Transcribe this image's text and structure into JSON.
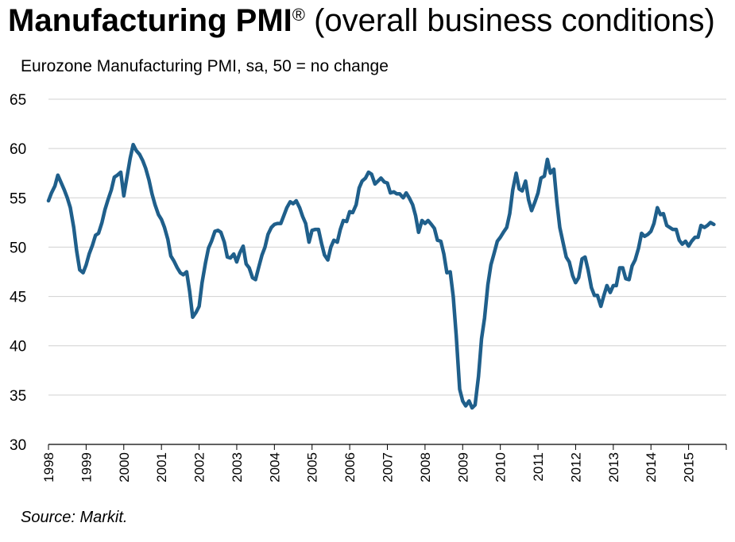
{
  "title": {
    "main": "Manufacturing PMI",
    "mark": "®",
    "rest": " (overall business conditions)"
  },
  "subtitle": "Eurozone Manufacturing PMI, sa, 50 = no change",
  "source": "Source: Markit.",
  "colors": {
    "line": "#1f5f8b",
    "grid": "#d0d0d0",
    "axis": "#000000"
  },
  "chart_data": {
    "type": "line",
    "title": "Manufacturing PMI® (overall business conditions)",
    "ylabel": "Eurozone Manufacturing PMI, sa, 50 = no change",
    "xlabel": "",
    "ylim": [
      30,
      65
    ],
    "yticks": [
      30,
      35,
      40,
      45,
      50,
      55,
      60,
      65
    ],
    "xlim": [
      1998.0,
      2016.0
    ],
    "xticks": [
      "1998",
      "1999",
      "2000",
      "2001",
      "2002",
      "2003",
      "2004",
      "2005",
      "2006",
      "2007",
      "2008",
      "2009",
      "2010",
      "2011",
      "2012",
      "2013",
      "2014",
      "2015"
    ],
    "grid": "horizontal",
    "series": [
      {
        "name": "",
        "points": [
          [
            1998.0,
            54.7
          ],
          [
            1998.08,
            55.5
          ],
          [
            1998.17,
            56.2
          ],
          [
            1998.25,
            57.3
          ],
          [
            1998.33,
            56.6
          ],
          [
            1998.42,
            55.8
          ],
          [
            1998.5,
            55.0
          ],
          [
            1998.58,
            54.0
          ],
          [
            1998.67,
            52.0
          ],
          [
            1998.75,
            49.6
          ],
          [
            1998.83,
            47.7
          ],
          [
            1998.92,
            47.4
          ],
          [
            1999.0,
            48.2
          ],
          [
            1999.08,
            49.3
          ],
          [
            1999.17,
            50.2
          ],
          [
            1999.25,
            51.2
          ],
          [
            1999.33,
            51.4
          ],
          [
            1999.42,
            52.5
          ],
          [
            1999.5,
            53.8
          ],
          [
            1999.58,
            54.8
          ],
          [
            1999.67,
            55.8
          ],
          [
            1999.75,
            57.1
          ],
          [
            1999.83,
            57.3
          ],
          [
            1999.92,
            57.6
          ],
          [
            2000.0,
            55.2
          ],
          [
            2000.08,
            57.0
          ],
          [
            2000.17,
            59.0
          ],
          [
            2000.25,
            60.4
          ],
          [
            2000.33,
            59.8
          ],
          [
            2000.42,
            59.4
          ],
          [
            2000.5,
            58.8
          ],
          [
            2000.58,
            58.0
          ],
          [
            2000.67,
            56.8
          ],
          [
            2000.75,
            55.4
          ],
          [
            2000.83,
            54.3
          ],
          [
            2000.92,
            53.3
          ],
          [
            2001.0,
            52.8
          ],
          [
            2001.08,
            52.0
          ],
          [
            2001.17,
            50.8
          ],
          [
            2001.25,
            49.1
          ],
          [
            2001.33,
            48.6
          ],
          [
            2001.42,
            47.9
          ],
          [
            2001.5,
            47.4
          ],
          [
            2001.58,
            47.2
          ],
          [
            2001.67,
            47.5
          ],
          [
            2001.75,
            45.5
          ],
          [
            2001.83,
            42.9
          ],
          [
            2001.92,
            43.4
          ],
          [
            2002.0,
            44.0
          ],
          [
            2002.08,
            46.4
          ],
          [
            2002.17,
            48.4
          ],
          [
            2002.25,
            49.9
          ],
          [
            2002.33,
            50.6
          ],
          [
            2002.42,
            51.6
          ],
          [
            2002.5,
            51.7
          ],
          [
            2002.58,
            51.5
          ],
          [
            2002.67,
            50.5
          ],
          [
            2002.75,
            49.0
          ],
          [
            2002.83,
            48.9
          ],
          [
            2002.92,
            49.3
          ],
          [
            2003.0,
            48.5
          ],
          [
            2003.08,
            49.4
          ],
          [
            2003.17,
            50.1
          ],
          [
            2003.25,
            48.3
          ],
          [
            2003.33,
            47.9
          ],
          [
            2003.42,
            46.9
          ],
          [
            2003.5,
            46.7
          ],
          [
            2003.58,
            47.9
          ],
          [
            2003.67,
            49.2
          ],
          [
            2003.75,
            50.0
          ],
          [
            2003.83,
            51.3
          ],
          [
            2003.92,
            52.0
          ],
          [
            2004.0,
            52.3
          ],
          [
            2004.08,
            52.4
          ],
          [
            2004.17,
            52.4
          ],
          [
            2004.25,
            53.2
          ],
          [
            2004.33,
            54.0
          ],
          [
            2004.42,
            54.6
          ],
          [
            2004.5,
            54.4
          ],
          [
            2004.58,
            54.7
          ],
          [
            2004.67,
            54.0
          ],
          [
            2004.75,
            53.1
          ],
          [
            2004.83,
            52.4
          ],
          [
            2004.92,
            50.5
          ],
          [
            2005.0,
            51.7
          ],
          [
            2005.08,
            51.8
          ],
          [
            2005.17,
            51.8
          ],
          [
            2005.25,
            50.4
          ],
          [
            2005.33,
            49.2
          ],
          [
            2005.42,
            48.7
          ],
          [
            2005.5,
            50.0
          ],
          [
            2005.58,
            50.7
          ],
          [
            2005.67,
            50.5
          ],
          [
            2005.75,
            51.8
          ],
          [
            2005.83,
            52.7
          ],
          [
            2005.92,
            52.6
          ],
          [
            2006.0,
            53.6
          ],
          [
            2006.08,
            53.5
          ],
          [
            2006.17,
            54.3
          ],
          [
            2006.25,
            56.0
          ],
          [
            2006.33,
            56.7
          ],
          [
            2006.42,
            57.0
          ],
          [
            2006.5,
            57.6
          ],
          [
            2006.58,
            57.4
          ],
          [
            2006.67,
            56.4
          ],
          [
            2006.75,
            56.7
          ],
          [
            2006.83,
            57.0
          ],
          [
            2006.92,
            56.6
          ],
          [
            2007.0,
            56.5
          ],
          [
            2007.08,
            55.5
          ],
          [
            2007.17,
            55.6
          ],
          [
            2007.25,
            55.4
          ],
          [
            2007.33,
            55.4
          ],
          [
            2007.42,
            55.0
          ],
          [
            2007.5,
            55.5
          ],
          [
            2007.58,
            55.0
          ],
          [
            2007.67,
            54.3
          ],
          [
            2007.75,
            53.2
          ],
          [
            2007.83,
            51.5
          ],
          [
            2007.92,
            52.7
          ],
          [
            2008.0,
            52.4
          ],
          [
            2008.08,
            52.7
          ],
          [
            2008.17,
            52.3
          ],
          [
            2008.25,
            51.9
          ],
          [
            2008.33,
            50.7
          ],
          [
            2008.42,
            50.6
          ],
          [
            2008.5,
            49.3
          ],
          [
            2008.58,
            47.4
          ],
          [
            2008.67,
            47.5
          ],
          [
            2008.75,
            45.0
          ],
          [
            2008.83,
            41.0
          ],
          [
            2008.92,
            35.6
          ],
          [
            2009.0,
            34.4
          ],
          [
            2009.08,
            33.9
          ],
          [
            2009.17,
            34.4
          ],
          [
            2009.25,
            33.7
          ],
          [
            2009.33,
            34.0
          ],
          [
            2009.42,
            36.9
          ],
          [
            2009.5,
            40.7
          ],
          [
            2009.58,
            42.8
          ],
          [
            2009.67,
            46.2
          ],
          [
            2009.75,
            48.2
          ],
          [
            2009.83,
            49.3
          ],
          [
            2009.92,
            50.6
          ],
          [
            2010.0,
            51.0
          ],
          [
            2010.08,
            51.5
          ],
          [
            2010.17,
            52.0
          ],
          [
            2010.25,
            53.4
          ],
          [
            2010.33,
            55.8
          ],
          [
            2010.42,
            57.5
          ],
          [
            2010.5,
            55.9
          ],
          [
            2010.58,
            55.7
          ],
          [
            2010.67,
            56.7
          ],
          [
            2010.75,
            54.8
          ],
          [
            2010.83,
            53.7
          ],
          [
            2010.92,
            54.6
          ],
          [
            2011.0,
            55.5
          ],
          [
            2011.08,
            57.0
          ],
          [
            2011.17,
            57.2
          ],
          [
            2011.25,
            58.9
          ],
          [
            2011.33,
            57.5
          ],
          [
            2011.42,
            57.9
          ],
          [
            2011.5,
            54.6
          ],
          [
            2011.58,
            52.0
          ],
          [
            2011.67,
            50.4
          ],
          [
            2011.75,
            49.0
          ],
          [
            2011.83,
            48.5
          ],
          [
            2011.92,
            47.1
          ],
          [
            2012.0,
            46.4
          ],
          [
            2012.08,
            46.9
          ],
          [
            2012.17,
            48.8
          ],
          [
            2012.25,
            49.0
          ],
          [
            2012.33,
            47.7
          ],
          [
            2012.42,
            45.9
          ],
          [
            2012.5,
            45.1
          ],
          [
            2012.58,
            45.1
          ],
          [
            2012.67,
            44.0
          ],
          [
            2012.75,
            45.1
          ],
          [
            2012.83,
            46.1
          ],
          [
            2012.92,
            45.4
          ],
          [
            2013.0,
            46.1
          ],
          [
            2013.08,
            46.1
          ],
          [
            2013.17,
            47.9
          ],
          [
            2013.25,
            47.9
          ],
          [
            2013.33,
            46.8
          ],
          [
            2013.42,
            46.7
          ],
          [
            2013.5,
            48.1
          ],
          [
            2013.58,
            48.7
          ],
          [
            2013.67,
            49.9
          ],
          [
            2013.75,
            51.4
          ],
          [
            2013.83,
            51.1
          ],
          [
            2013.92,
            51.3
          ],
          [
            2014.0,
            51.6
          ],
          [
            2014.08,
            52.4
          ],
          [
            2014.17,
            54.0
          ],
          [
            2014.25,
            53.3
          ],
          [
            2014.33,
            53.4
          ],
          [
            2014.42,
            52.2
          ],
          [
            2014.5,
            52.0
          ],
          [
            2014.58,
            51.8
          ],
          [
            2014.67,
            51.8
          ],
          [
            2014.75,
            50.7
          ],
          [
            2014.83,
            50.3
          ],
          [
            2014.92,
            50.6
          ],
          [
            2015.0,
            50.1
          ],
          [
            2015.08,
            50.6
          ],
          [
            2015.17,
            51.0
          ],
          [
            2015.25,
            51.0
          ],
          [
            2015.33,
            52.2
          ],
          [
            2015.42,
            52.0
          ],
          [
            2015.5,
            52.2
          ],
          [
            2015.58,
            52.5
          ],
          [
            2015.67,
            52.3
          ]
        ]
      }
    ]
  }
}
